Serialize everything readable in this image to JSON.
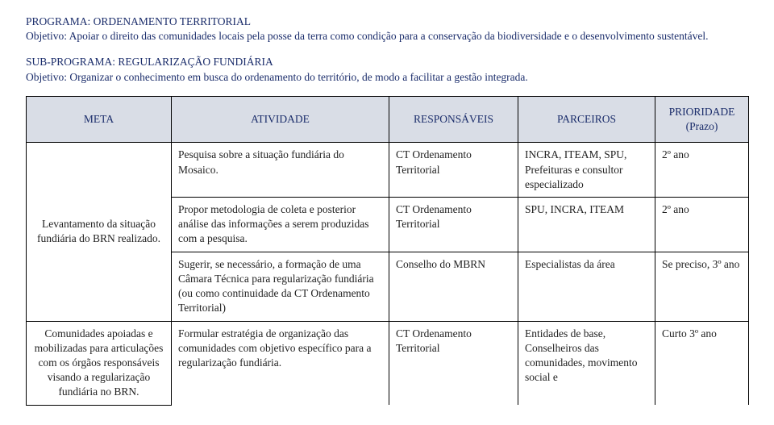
{
  "header": {
    "program_label": "PROGRAMA: ",
    "program_name": "ORDENAMENTO TERRITORIAL",
    "objective_label": "Objetivo: ",
    "objective_text": "Apoiar o direito das comunidades locais pela posse da terra como condição para a conservação da biodiversidade e o desenvolvimento sustentável."
  },
  "subheader": {
    "subprogram_label": "SUB-PROGRAMA: ",
    "subprogram_name": "REGULARIZAÇÃO FUNDIÁRIA",
    "objective_label": "Objetivo: ",
    "objective_text": "Organizar o conhecimento em busca do ordenamento do território, de modo a facilitar a gestão integrada."
  },
  "table": {
    "headers": {
      "meta": "META",
      "atividade": "ATIVIDADE",
      "responsaveis": "RESPONSÁVEIS",
      "parceiros": "PARCEIROS",
      "prioridade": "PRIORIDADE (Prazo)"
    },
    "rows": [
      {
        "meta": "Levantamento da situação fundiária do BRN realizado.",
        "activities": [
          {
            "atividade": "Pesquisa sobre a situação fundiária do Mosaico.",
            "responsaveis": "CT Ordenamento Territorial",
            "parceiros": "INCRA, ITEAM, SPU, Prefeituras e consultor especializado",
            "prioridade": "2º ano"
          },
          {
            "atividade": "Propor metodologia de coleta e posterior análise das informações a serem produzidas com a pesquisa.",
            "responsaveis": "CT Ordenamento Territorial",
            "parceiros": "SPU, INCRA, ITEAM",
            "prioridade": "2º ano"
          },
          {
            "atividade": "Sugerir, se necessário, a formação de uma Câmara Técnica para regularização fundiária (ou como continuidade da CT Ordenamento Territorial)",
            "responsaveis": "Conselho do MBRN",
            "parceiros": "Especialistas da área",
            "prioridade": "Se preciso, 3º ano"
          }
        ]
      },
      {
        "meta": "Comunidades apoiadas e mobilizadas para articulações com os órgãos responsáveis visando a regularização fundiária no BRN.",
        "activities": [
          {
            "atividade": "Formular estratégia de organização das comunidades com objetivo específico para a regularização fundiária.",
            "responsaveis": "CT Ordenamento Territorial",
            "parceiros": " Entidades de base, Conselheiros das comunidades, movimento social e",
            "prioridade": "Curto 3º ano"
          }
        ]
      }
    ]
  }
}
